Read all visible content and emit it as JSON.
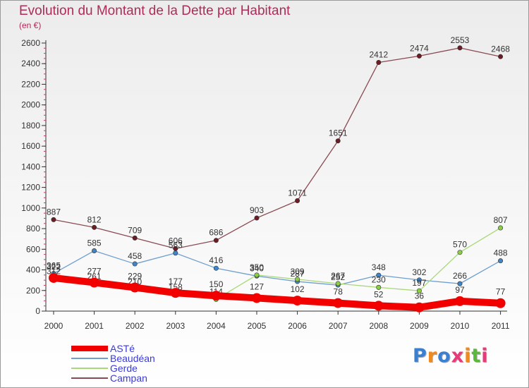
{
  "title": "Evolution du Montant de la Dette par Habitant",
  "subtitle": "(en €)",
  "logo_text": "Proxiti",
  "chart_data": {
    "type": "line",
    "x": [
      "2000",
      "2001",
      "2002",
      "2003",
      "2004",
      "2005",
      "2006",
      "2007",
      "2008",
      "2009",
      "2010",
      "2011"
    ],
    "ylim": [
      0,
      2600
    ],
    "yticks": [
      0,
      200,
      400,
      600,
      800,
      1000,
      1200,
      1400,
      1600,
      1800,
      2000,
      2200,
      2400,
      2600
    ],
    "grid": false,
    "legend": "bottom-left",
    "series": [
      {
        "name": "Campan",
        "color": "#8a4a52",
        "marker": "#6b1c24",
        "values": [
          887,
          812,
          709,
          606,
          686,
          903,
          1071,
          1651,
          2412,
          2474,
          2553,
          2468
        ]
      },
      {
        "name": "Beaudéan",
        "color": "#6f9fd0",
        "marker": "#3f85c8",
        "values": [
          365,
          585,
          458,
          563,
          416,
          340,
          287,
          252,
          348,
          302,
          266,
          488
        ]
      },
      {
        "name": "Gerde",
        "color": "#a8d878",
        "marker": "#88d040",
        "values": [
          312,
          261,
          210,
          158,
          114,
          350,
          309,
          267,
          230,
          197,
          570,
          807
        ]
      },
      {
        "name": "ASTé",
        "color": "#f20000",
        "marker": "#f20000",
        "values": [
          322,
          277,
          229,
          177,
          150,
          127,
          102,
          78,
          52,
          36,
          97,
          77
        ]
      }
    ],
    "legend_order": [
      "ASTé",
      "Beaudéan",
      "Gerde",
      "Campan"
    ]
  }
}
